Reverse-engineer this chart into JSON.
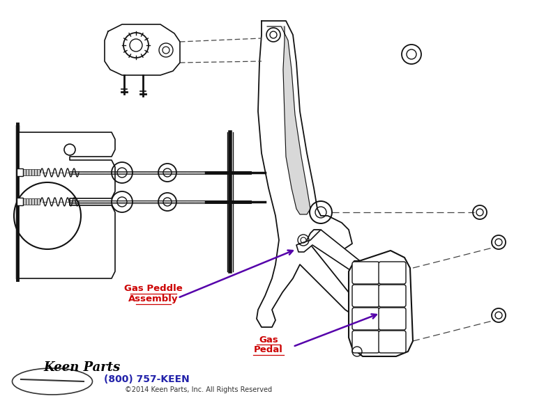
{
  "bg_color": "#ffffff",
  "label1_line1": "Gas Peddle",
  "label1_line2": "Assembly",
  "label2_line1": "Gas",
  "label2_line2": "Pedal",
  "label_color": "#cc0000",
  "arrow_color": "#5500aa",
  "phone": "(800) 757-KEEN",
  "phone_color": "#2222aa",
  "copyright": "©2014 Keen Parts, Inc. All Rights Reserved",
  "copyright_color": "#333333",
  "line_color": "#111111",
  "figsize": [
    7.7,
    5.79
  ],
  "dpi": 100
}
